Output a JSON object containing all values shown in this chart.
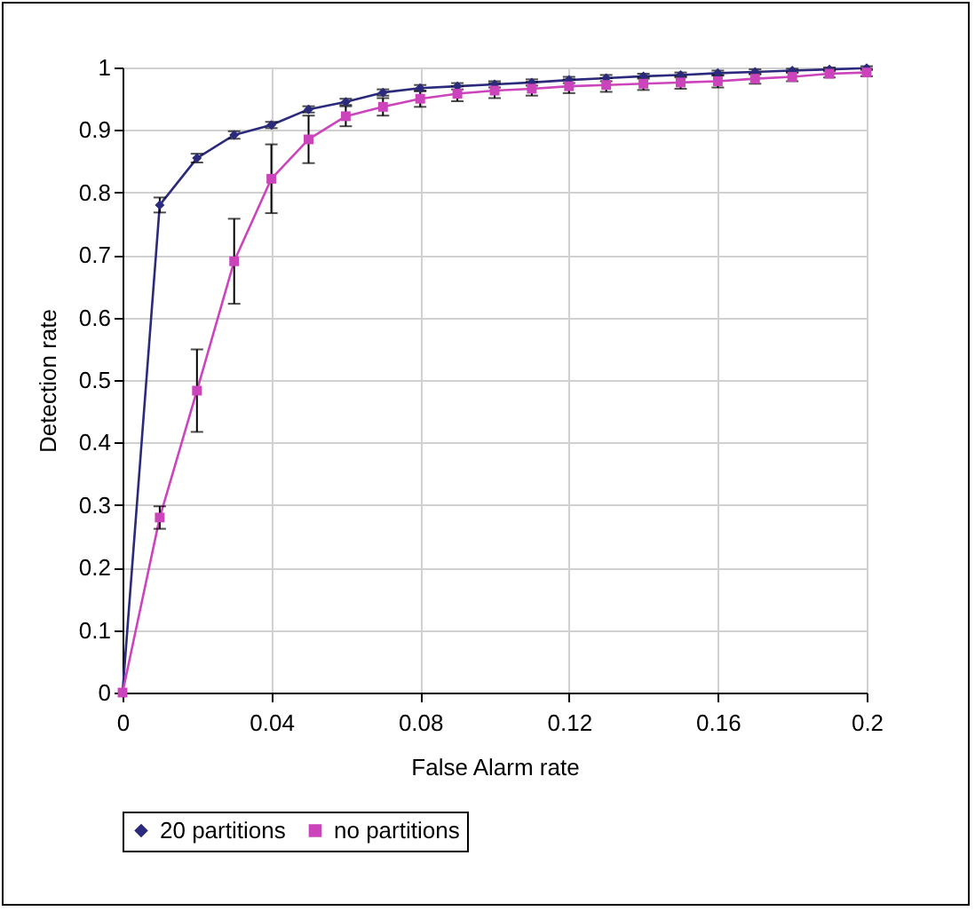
{
  "chart_data": {
    "type": "line",
    "xlabel": "False Alarm rate",
    "ylabel": "Detection rate",
    "x": [
      0,
      0.01,
      0.02,
      0.03,
      0.04,
      0.05,
      0.06,
      0.07,
      0.08,
      0.09,
      0.1,
      0.11,
      0.12,
      0.13,
      0.14,
      0.15,
      0.16,
      0.17,
      0.18,
      0.19,
      0.2
    ],
    "series": [
      {
        "name": "20 partitions",
        "color": "#2b2a7c",
        "marker": "diamond",
        "values": [
          0,
          0.78,
          0.855,
          0.892,
          0.908,
          0.933,
          0.945,
          0.96,
          0.967,
          0.97,
          0.973,
          0.976,
          0.98,
          0.983,
          0.986,
          0.988,
          0.991,
          0.993,
          0.995,
          0.997,
          0.999
        ],
        "errors": [
          null,
          0.012,
          0.007,
          0.006,
          0.005,
          0.005,
          0.005,
          0.005,
          0.005,
          0.005,
          0.005,
          0.005,
          0.005,
          0.005,
          0.004,
          0.004,
          0.004,
          0.004,
          0.003,
          0.003,
          0.003
        ]
      },
      {
        "name": "no partitions",
        "color": "#cc44bb",
        "marker": "square",
        "values": [
          0,
          0.28,
          0.483,
          0.69,
          0.822,
          0.885,
          0.922,
          0.937,
          0.95,
          0.958,
          0.963,
          0.966,
          0.97,
          0.972,
          0.974,
          0.976,
          0.978,
          0.982,
          0.985,
          0.99,
          0.992
        ],
        "errors": [
          null,
          0.018,
          0.066,
          0.068,
          0.055,
          0.038,
          0.016,
          0.014,
          0.013,
          0.012,
          0.012,
          0.011,
          0.011,
          0.011,
          0.01,
          0.01,
          0.01,
          0.008,
          0.007,
          0.006,
          0.006
        ]
      }
    ],
    "xlim": [
      0,
      0.2
    ],
    "xticks": [
      0,
      0.04,
      0.08,
      0.12,
      0.16,
      0.2
    ],
    "ylim": [
      0,
      1
    ],
    "yticks": [
      0,
      0.1,
      0.2,
      0.3,
      0.4,
      0.5,
      0.6,
      0.7,
      0.8,
      0.9,
      1
    ],
    "grid": true,
    "legend": "bottom",
    "line_style": "solid"
  }
}
